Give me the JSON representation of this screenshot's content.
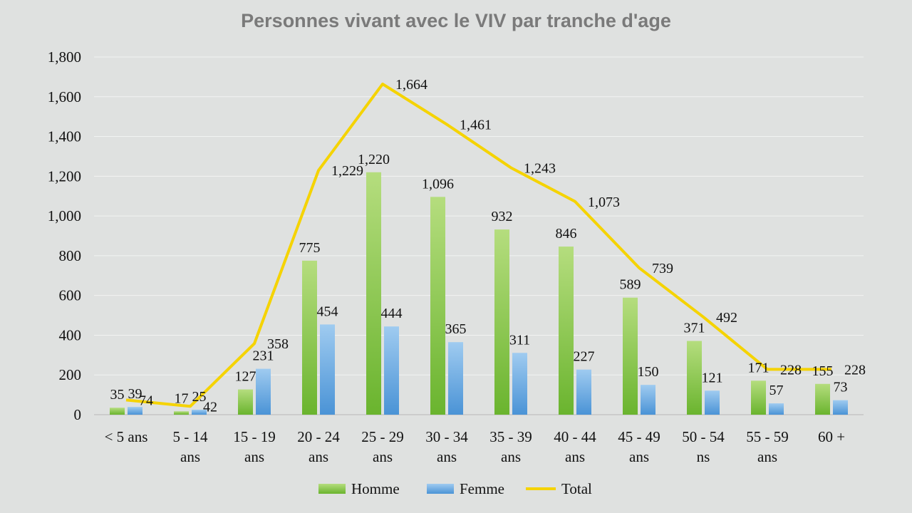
{
  "chart_data": {
    "type": "bar",
    "title": "Personnes vivant avec le VIV par tranche d'age",
    "xlabel": "",
    "ylabel": "",
    "ylim": [
      0,
      1800
    ],
    "yticks": [
      0,
      200,
      400,
      600,
      800,
      1000,
      1200,
      1400,
      1600,
      1800
    ],
    "ytick_labels": [
      "0",
      "200",
      "400",
      "600",
      "800",
      "1,000",
      "1,200",
      "1,400",
      "1,600",
      "1,800"
    ],
    "grid": true,
    "legend_position": "bottom",
    "categories": [
      [
        "< 5 ans"
      ],
      [
        "5 - 14",
        "ans"
      ],
      [
        "15 - 19",
        "ans"
      ],
      [
        "20 - 24",
        "ans"
      ],
      [
        "25 - 29",
        "ans"
      ],
      [
        "30 - 34",
        "ans"
      ],
      [
        "35 - 39",
        "ans"
      ],
      [
        "40 - 44",
        "ans"
      ],
      [
        "45 - 49",
        "ans"
      ],
      [
        "50 - 54",
        "ns"
      ],
      [
        "55 - 59",
        "ans"
      ],
      [
        "60 +"
      ]
    ],
    "series": [
      {
        "name": "Homme",
        "kind": "bar",
        "color": "#8cc63f",
        "values": [
          35,
          17,
          127,
          775,
          1220,
          1096,
          932,
          846,
          589,
          371,
          171,
          155
        ],
        "labels": [
          "35",
          "17",
          "127",
          "775",
          "1,220",
          "1,096",
          "932",
          "846",
          "589",
          "371",
          "171",
          "155"
        ]
      },
      {
        "name": "Femme",
        "kind": "bar",
        "color": "#5ba3e0",
        "values": [
          39,
          25,
          231,
          454,
          444,
          365,
          311,
          227,
          150,
          121,
          57,
          73
        ],
        "labels": [
          "39",
          "25",
          "231",
          "454",
          "444",
          "365",
          "311",
          "227",
          "150",
          "121",
          "57",
          "73"
        ]
      },
      {
        "name": "Total",
        "kind": "line",
        "color": "#f5d300",
        "values": [
          74,
          42,
          358,
          1229,
          1664,
          1461,
          1243,
          1073,
          739,
          492,
          228,
          228
        ],
        "labels": [
          "74",
          "42",
          "358",
          "1,229",
          "1,664",
          "1,461",
          "1,243",
          "1,073",
          "739",
          "492",
          "228",
          "228"
        ]
      }
    ]
  }
}
